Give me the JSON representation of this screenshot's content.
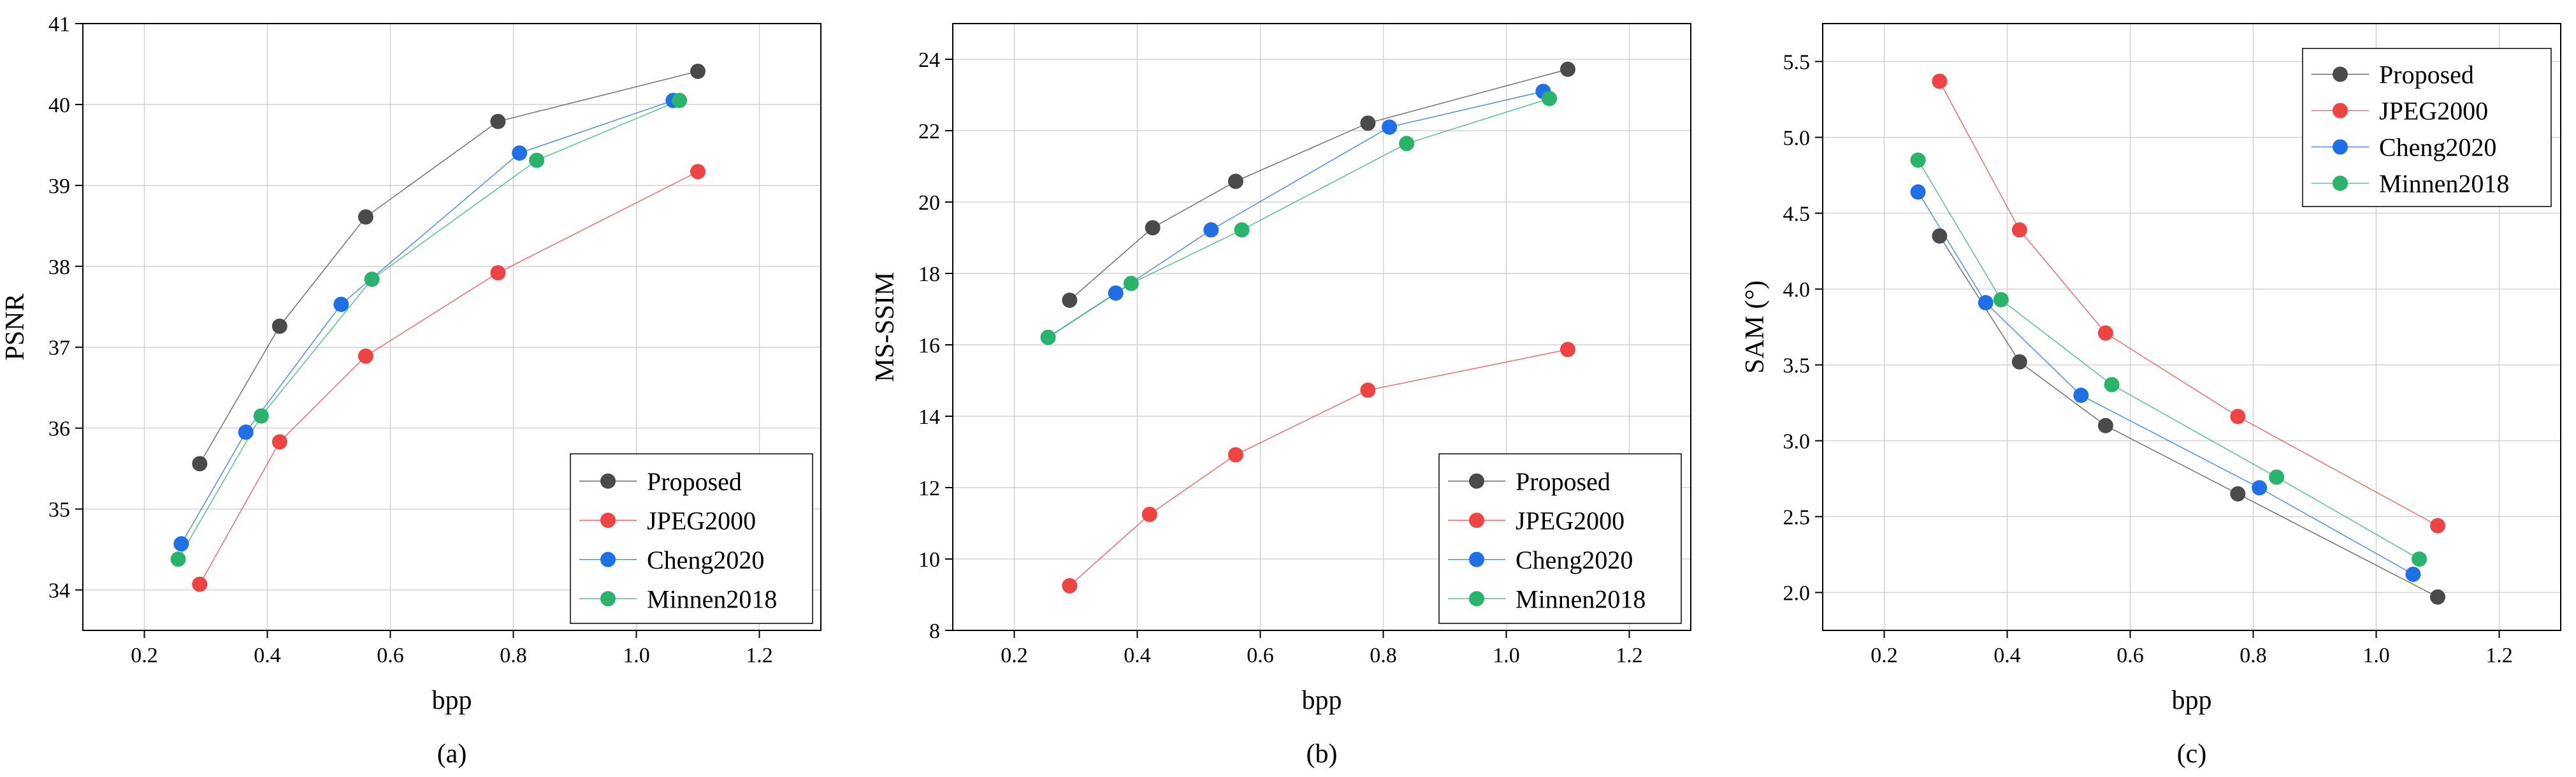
{
  "colors": {
    "Proposed": "#4a4a4a",
    "JPEG2000": "#ee4444",
    "Cheng2020": "#1f6fe6",
    "Minnen2018": "#2ab36b"
  },
  "chart_data": [
    {
      "type": "line",
      "caption": "(a)",
      "xlabel": "bpp",
      "ylabel": "PSNR",
      "xlim": [
        0.1,
        1.3
      ],
      "ylim": [
        33.5,
        41
      ],
      "xticks": [
        0.2,
        0.4,
        0.6,
        0.8,
        1.0,
        1.2
      ],
      "xtick_labels": [
        "0.2",
        "0.4",
        "0.6",
        "0.8",
        "1.0",
        "1.2"
      ],
      "yticks": [
        34,
        35,
        36,
        37,
        38,
        39,
        40,
        41
      ],
      "ytick_labels": [
        "34",
        "35",
        "36",
        "37",
        "38",
        "39",
        "40",
        "41"
      ],
      "grid": true,
      "legend_position": "bottom-right",
      "series": [
        {
          "name": "Proposed",
          "points": [
            [
              0.29,
              35.56
            ],
            [
              0.42,
              37.26
            ],
            [
              0.56,
              38.61
            ],
            [
              0.775,
              39.79
            ],
            [
              1.1,
              40.41
            ]
          ]
        },
        {
          "name": "JPEG2000",
          "points": [
            [
              0.29,
              34.07
            ],
            [
              0.42,
              35.83
            ],
            [
              0.56,
              36.89
            ],
            [
              0.775,
              37.92
            ],
            [
              1.1,
              39.17
            ]
          ]
        },
        {
          "name": "Cheng2020",
          "points": [
            [
              0.26,
              34.57
            ],
            [
              0.365,
              35.95
            ],
            [
              0.52,
              37.53
            ],
            [
              0.81,
              39.4
            ],
            [
              1.06,
              40.05
            ]
          ]
        },
        {
          "name": "Minnen2018",
          "points": [
            [
              0.255,
              34.38
            ],
            [
              0.39,
              36.15
            ],
            [
              0.57,
              37.84
            ],
            [
              0.838,
              39.31
            ],
            [
              1.07,
              40.05
            ]
          ]
        }
      ]
    },
    {
      "type": "line",
      "caption": "(b)",
      "xlabel": "bpp",
      "ylabel": "MS-SSIM",
      "xlim": [
        0.1,
        1.3
      ],
      "ylim": [
        8,
        25
      ],
      "xticks": [
        0.2,
        0.4,
        0.6,
        0.8,
        1.0,
        1.2
      ],
      "xtick_labels": [
        "0.2",
        "0.4",
        "0.6",
        "0.8",
        "1.0",
        "1.2"
      ],
      "yticks": [
        8,
        10,
        12,
        14,
        16,
        18,
        20,
        22,
        24
      ],
      "ytick_labels": [
        "8",
        "10",
        "12",
        "14",
        "16",
        "18",
        "20",
        "22",
        "24"
      ],
      "grid": true,
      "legend_position": "bottom-right",
      "series": [
        {
          "name": "Proposed",
          "points": [
            [
              0.29,
              17.25
            ],
            [
              0.425,
              19.28
            ],
            [
              0.56,
              20.58
            ],
            [
              0.775,
              22.21
            ],
            [
              1.1,
              23.72
            ]
          ]
        },
        {
          "name": "JPEG2000",
          "points": [
            [
              0.29,
              9.25
            ],
            [
              0.42,
              11.25
            ],
            [
              0.56,
              12.92
            ],
            [
              0.775,
              14.73
            ],
            [
              1.1,
              15.87
            ]
          ]
        },
        {
          "name": "Cheng2020",
          "points": [
            [
              0.255,
              16.21
            ],
            [
              0.365,
              17.45
            ],
            [
              0.52,
              19.22
            ],
            [
              0.81,
              22.1
            ],
            [
              1.06,
              23.1
            ]
          ]
        },
        {
          "name": "Minnen2018",
          "points": [
            [
              0.255,
              16.21
            ],
            [
              0.39,
              17.72
            ],
            [
              0.57,
              19.22
            ],
            [
              0.838,
              21.64
            ],
            [
              1.07,
              22.9
            ]
          ]
        }
      ]
    },
    {
      "type": "line",
      "caption": "(c)",
      "xlabel": "bpp",
      "ylabel": "SAM (°)",
      "xlim": [
        0.1,
        1.3
      ],
      "ylim": [
        1.75,
        5.75
      ],
      "xticks": [
        0.2,
        0.4,
        0.6,
        0.8,
        1.0,
        1.2
      ],
      "xtick_labels": [
        "0.2",
        "0.4",
        "0.6",
        "0.8",
        "1.0",
        "1.2"
      ],
      "yticks": [
        2.0,
        2.5,
        3.0,
        3.5,
        4.0,
        4.5,
        5.0,
        5.5
      ],
      "ytick_labels": [
        "2.0",
        "2.5",
        "3.0",
        "3.5",
        "4.0",
        "4.5",
        "5.0",
        "5.5"
      ],
      "grid": true,
      "legend_position": "top-right",
      "series": [
        {
          "name": "Proposed",
          "points": [
            [
              0.29,
              4.35
            ],
            [
              0.42,
              3.52
            ],
            [
              0.56,
              3.1
            ],
            [
              0.775,
              2.65
            ],
            [
              1.1,
              1.97
            ]
          ]
        },
        {
          "name": "JPEG2000",
          "points": [
            [
              0.29,
              5.37
            ],
            [
              0.42,
              4.39
            ],
            [
              0.56,
              3.71
            ],
            [
              0.775,
              3.16
            ],
            [
              1.1,
              2.44
            ]
          ]
        },
        {
          "name": "Cheng2020",
          "points": [
            [
              0.255,
              4.64
            ],
            [
              0.365,
              3.91
            ],
            [
              0.52,
              3.3
            ],
            [
              0.81,
              2.69
            ],
            [
              1.06,
              2.12
            ]
          ]
        },
        {
          "name": "Minnen2018",
          "points": [
            [
              0.255,
              4.85
            ],
            [
              0.39,
              3.93
            ],
            [
              0.57,
              3.37
            ],
            [
              0.838,
              2.76
            ],
            [
              1.07,
              2.22
            ]
          ]
        }
      ]
    }
  ]
}
